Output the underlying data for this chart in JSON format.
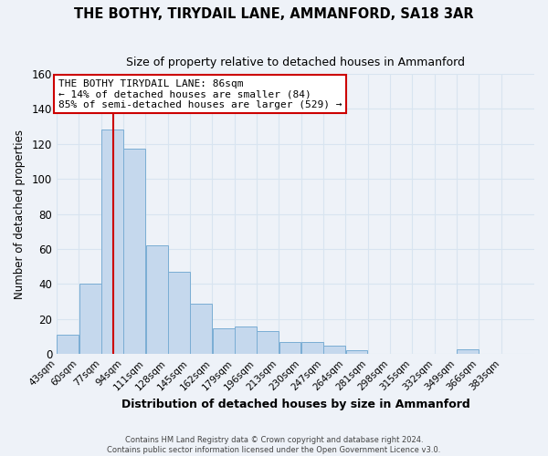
{
  "title": "THE BOTHY, TIRYDAIL LANE, AMMANFORD, SA18 3AR",
  "subtitle": "Size of property relative to detached houses in Ammanford",
  "xlabel": "Distribution of detached houses by size in Ammanford",
  "ylabel": "Number of detached properties",
  "bar_color": "#c5d8ed",
  "bar_edge_color": "#7aadd4",
  "bin_labels": [
    "43sqm",
    "60sqm",
    "77sqm",
    "94sqm",
    "111sqm",
    "128sqm",
    "145sqm",
    "162sqm",
    "179sqm",
    "196sqm",
    "213sqm",
    "230sqm",
    "247sqm",
    "264sqm",
    "281sqm",
    "298sqm",
    "315sqm",
    "332sqm",
    "349sqm",
    "366sqm",
    "383sqm"
  ],
  "bar_heights": [
    11,
    40,
    128,
    117,
    62,
    47,
    29,
    15,
    16,
    13,
    7,
    7,
    5,
    2,
    0,
    0,
    0,
    0,
    3,
    0,
    0
  ],
  "property_line_x": 86,
  "ylim": [
    0,
    160
  ],
  "yticks": [
    0,
    20,
    40,
    60,
    80,
    100,
    120,
    140,
    160
  ],
  "annotation_line1": "THE BOTHY TIRYDAIL LANE: 86sqm",
  "annotation_line2": "← 14% of detached houses are smaller (84)",
  "annotation_line3": "85% of semi-detached houses are larger (529) →",
  "footer_line1": "Contains HM Land Registry data © Crown copyright and database right 2024.",
  "footer_line2": "Contains public sector information licensed under the Open Government Licence v3.0.",
  "grid_color": "#d8e4f0",
  "background_color": "#eef2f8",
  "vline_color": "#cc0000",
  "annotation_box_color": "#ffffff",
  "annotation_box_edge": "#cc0000"
}
